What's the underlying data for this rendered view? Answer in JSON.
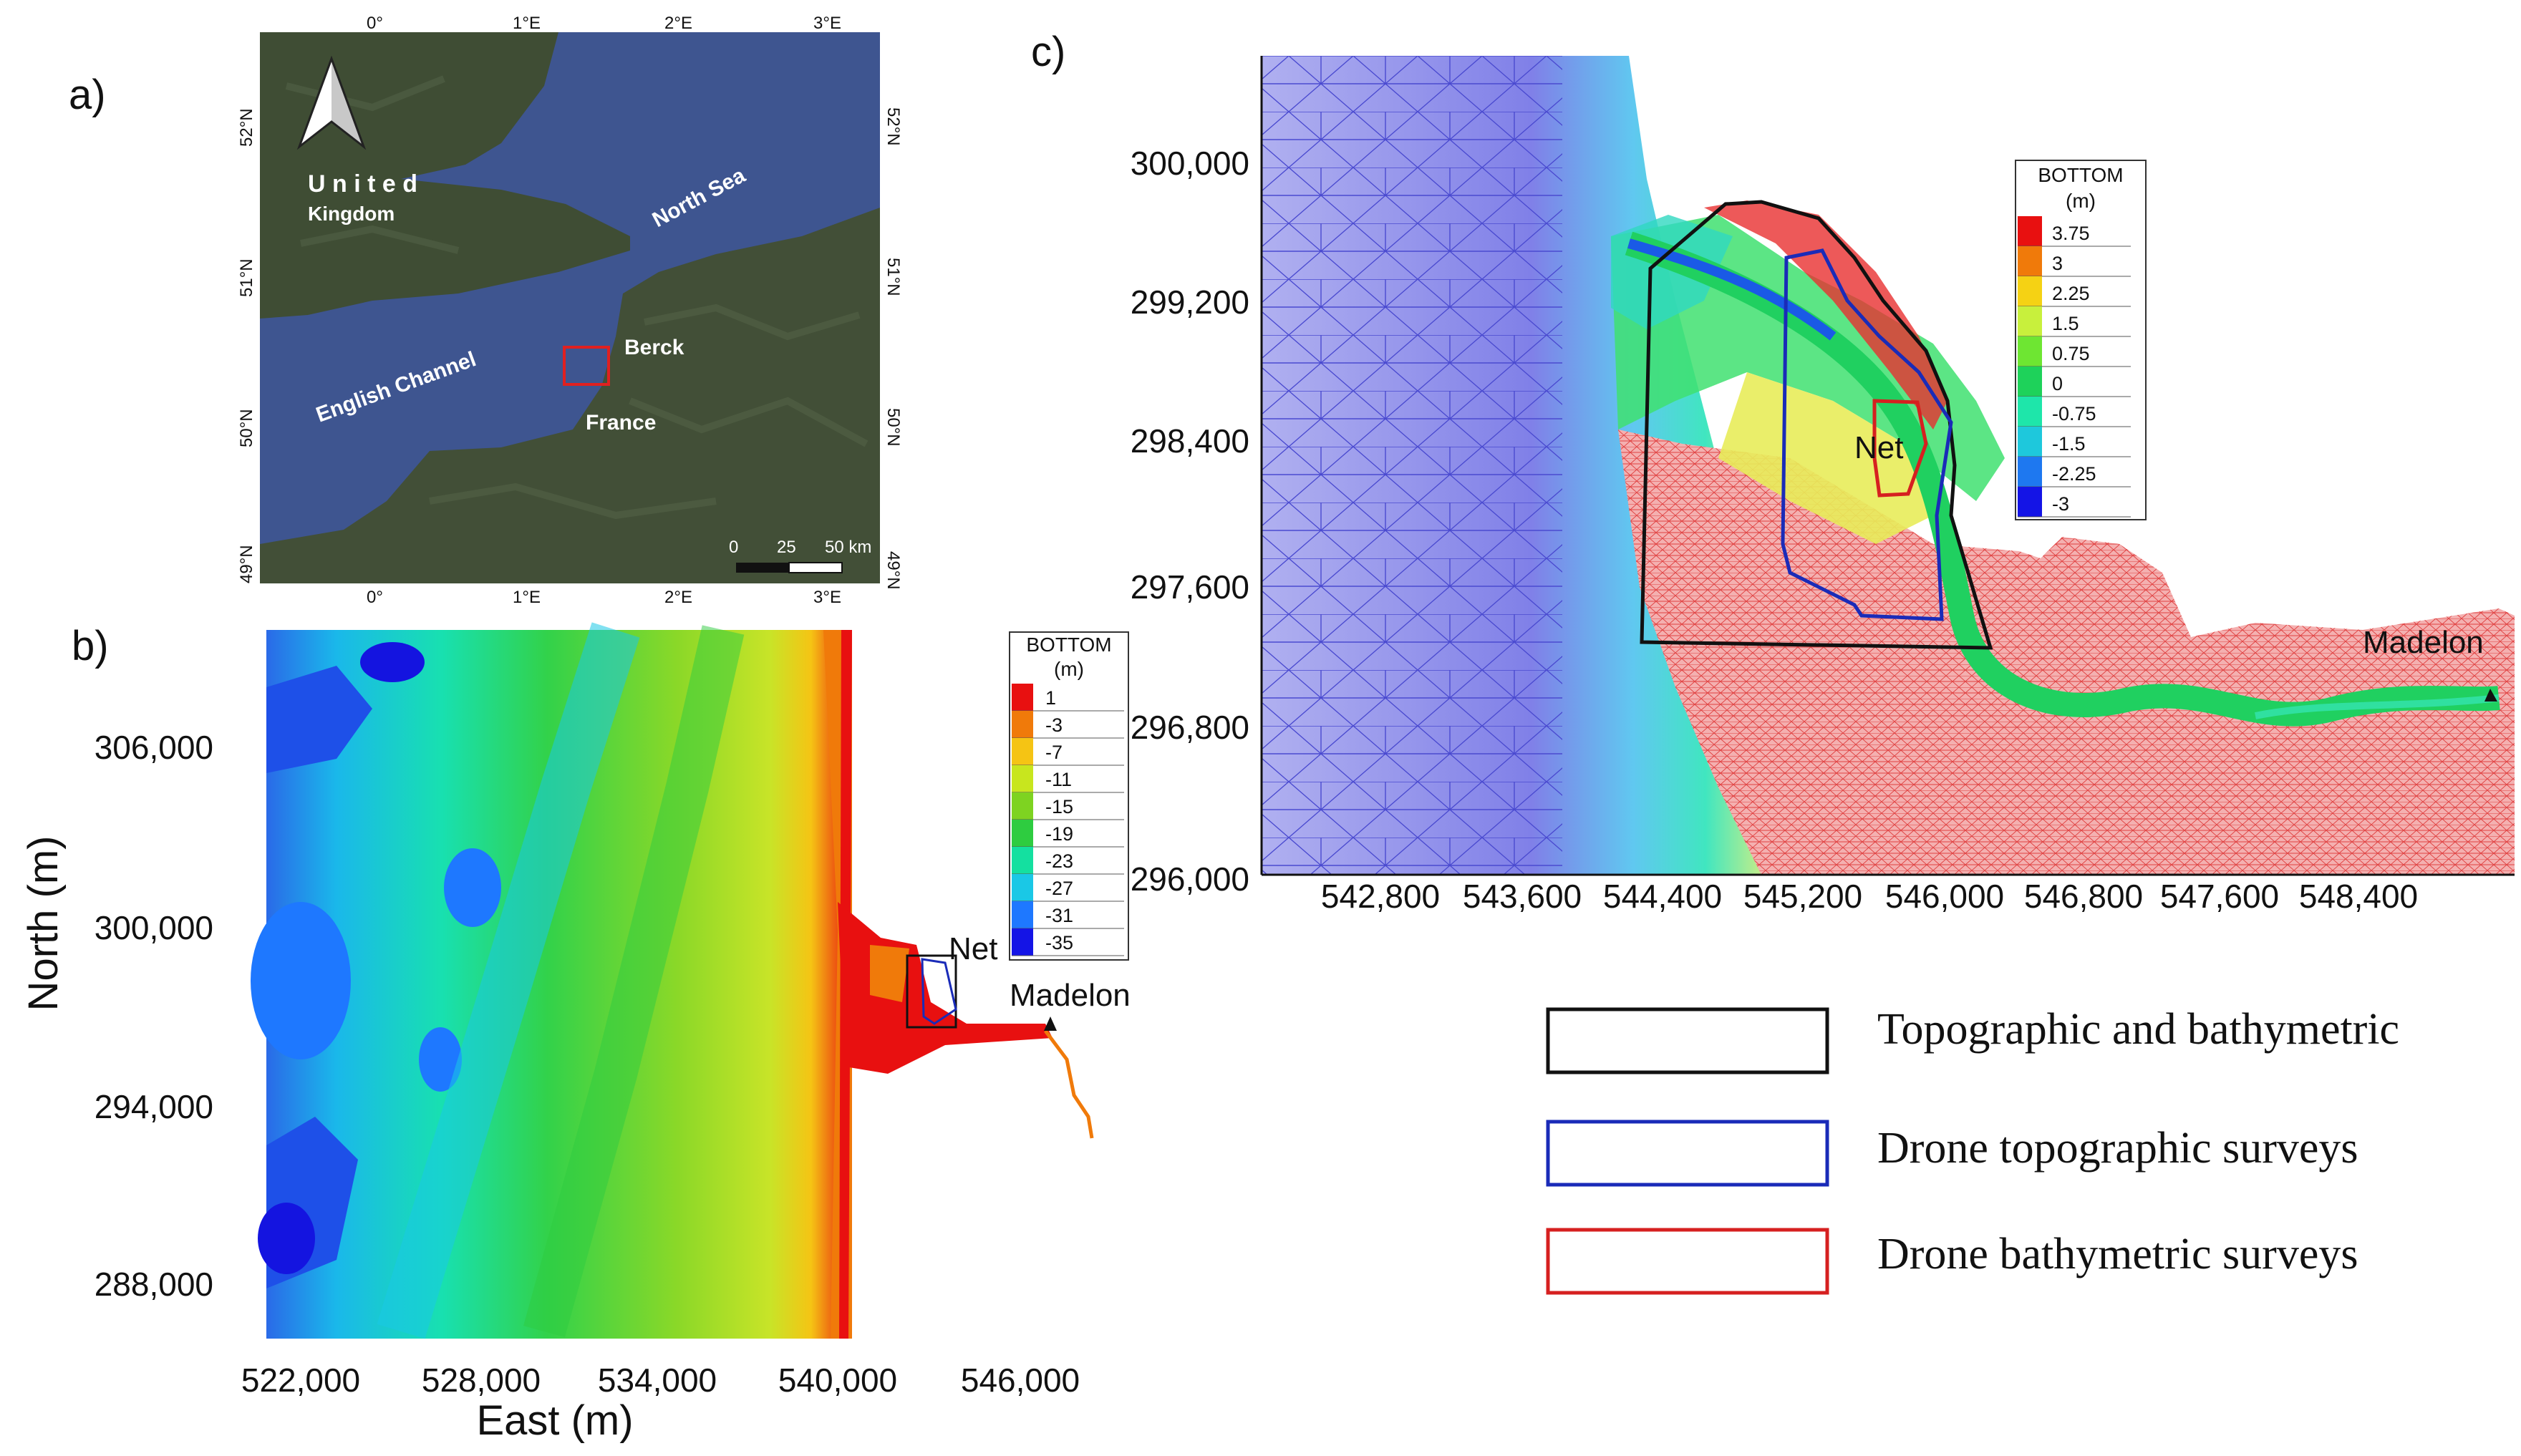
{
  "panels": {
    "a": {
      "label": "a)"
    },
    "b": {
      "label": "b)"
    },
    "c": {
      "label": "c)"
    }
  },
  "map_a": {
    "top_ticks": [
      "0°",
      "1°E",
      "2°E",
      "3°E"
    ],
    "bottom_ticks": [
      "0°",
      "1°E",
      "2°E",
      "3°E"
    ],
    "left_ticks": [
      "52°N",
      "51°N",
      "50°N",
      "49°N"
    ],
    "right_ticks": [
      "52°N",
      "51°N",
      "50°N",
      "49°N"
    ],
    "places": {
      "united": "U n i t e d",
      "kingdom": "Kingdom",
      "north_sea": "North Sea",
      "english_channel": "English Channel",
      "berck": "Berck",
      "france": "France"
    },
    "scale_labels": [
      "0",
      "25",
      "50 km"
    ],
    "colors": {
      "sea": "#3e5590",
      "land": "#3d4b33",
      "study_box": "#e02020"
    }
  },
  "map_b": {
    "y_ticks": [
      "306,000",
      "300,000",
      "294,000",
      "288,000"
    ],
    "x_ticks": [
      "522,000",
      "528,000",
      "534,000",
      "540,000",
      "546,000"
    ],
    "x_title": "East (m)",
    "y_title": "North (m)",
    "net_label": "Net",
    "madelon_label": "Madelon",
    "legend": {
      "title_line1": "BOTTOM",
      "title_line2": "(m)",
      "values": [
        "1",
        "-3",
        "-7",
        "-11",
        "-15",
        "-19",
        "-23",
        "-27",
        "-31",
        "-35"
      ],
      "colors": [
        "#e81010",
        "#f07a0a",
        "#f5c414",
        "#c8e61e",
        "#7ed321",
        "#2ecc40",
        "#14e0a0",
        "#1ac8e6",
        "#1e78ff",
        "#1414e6"
      ]
    }
  },
  "map_c": {
    "y_ticks": [
      "300,000",
      "299,200",
      "298,400",
      "297,600",
      "296,800",
      "296,000"
    ],
    "x_ticks": [
      "542,800",
      "543,600",
      "544,400",
      "545,200",
      "546,000",
      "546,800",
      "547,600",
      "548,400"
    ],
    "net_label": "Net",
    "madelon_label": "Madelon",
    "legend": {
      "title_line1": "BOTTOM",
      "title_line2": "(m)",
      "values": [
        "3.75",
        "3",
        "2.25",
        "1.5",
        "0.75",
        "0",
        "-0.75",
        "-1.5",
        "-2.25",
        "-3"
      ],
      "colors": [
        "#e81010",
        "#f07a0a",
        "#f5d214",
        "#c8f03c",
        "#6ee632",
        "#1ed25a",
        "#1ee6aa",
        "#1ec8dc",
        "#1e78f0",
        "#1414e6"
      ]
    }
  },
  "key": {
    "items": [
      {
        "label": "Topographic and bathymetric",
        "color": "#111111"
      },
      {
        "label": "Drone topographic surveys",
        "color": "#1a2bb8"
      },
      {
        "label": "Drone bathymetric surveys",
        "color": "#d62020"
      }
    ]
  }
}
